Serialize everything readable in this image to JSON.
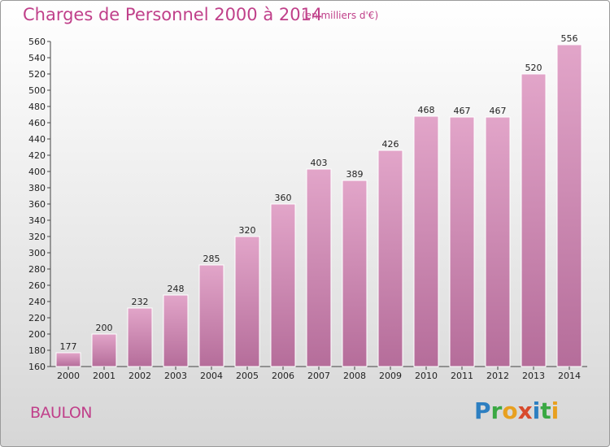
{
  "title": "Charges de Personnel 2000 à 2014",
  "subtitle": "(en milliers d'€)",
  "commune": "BAULON",
  "logo": {
    "letters": [
      "P",
      "r",
      "o",
      "x",
      "i",
      "t",
      "i"
    ],
    "colors": [
      "#2d7fc1",
      "#3aa843",
      "#e8a020",
      "#d84a2c",
      "#2d7fc1",
      "#3aa843",
      "#e8a020"
    ]
  },
  "colors": {
    "bar_top": "#e2a5c9",
    "bar_bottom": "#b56d9a",
    "title": "#c0408a"
  },
  "chart_data": {
    "type": "bar",
    "title": "Charges de Personnel 2000 à 2014",
    "subtitle": "(en milliers d'€)",
    "categories": [
      "2000",
      "2001",
      "2002",
      "2003",
      "2004",
      "2005",
      "2006",
      "2007",
      "2008",
      "2009",
      "2010",
      "2011",
      "2012",
      "2013",
      "2014"
    ],
    "values": [
      177,
      200,
      232,
      248,
      285,
      320,
      360,
      403,
      389,
      426,
      468,
      467,
      467,
      520,
      556
    ],
    "ylim": [
      160,
      560
    ],
    "ytick_step": 20,
    "grid": false,
    "legend": "none"
  }
}
